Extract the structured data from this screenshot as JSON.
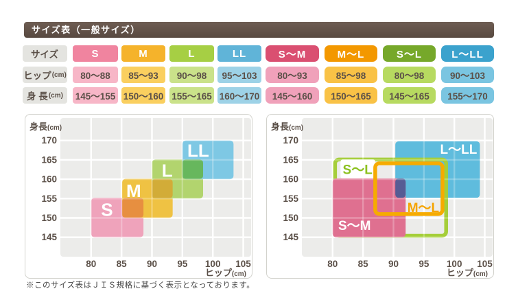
{
  "title": "サイズ表（一般サイズ）",
  "note": "※このサイズ表はＪＩＳ規格に基づく表示となっております。",
  "standard_table": {
    "row_header_bg": "#E4E4E0",
    "row_headers": [
      {
        "label": "サイズ",
        "unit": ""
      },
      {
        "label": "ヒップ",
        "unit": "(cm)"
      },
      {
        "label": "身 長",
        "unit": "(cm)"
      }
    ],
    "columns": [
      {
        "size": "S",
        "hip": "80～88",
        "height": "145～155",
        "header_color": "#F0849F",
        "cell_color": "#F7B6C7"
      },
      {
        "size": "M",
        "hip": "85～93",
        "height": "150～160",
        "header_color": "#F5B32B",
        "cell_color": "#FACF5F"
      },
      {
        "size": "L",
        "hip": "90～98",
        "height": "155～165",
        "header_color": "#A6CF44",
        "cell_color": "#CAE28A"
      },
      {
        "size": "LL",
        "hip": "95～103",
        "height": "160～170",
        "header_color": "#60B4D8",
        "cell_color": "#9DD2E7"
      }
    ]
  },
  "combined_table": {
    "columns": [
      {
        "size": "S～M",
        "hip": "80～93",
        "height": "145～160",
        "header_color": "#DA4F71",
        "cell_color": "#F0A1BA"
      },
      {
        "size": "M～L",
        "hip": "85～98",
        "height": "150～165",
        "header_color": "#F39800",
        "cell_color": "#F9C246"
      },
      {
        "size": "S～L",
        "hip": "80～98",
        "height": "145～165",
        "header_color": "#76A82A",
        "cell_color": "#B7DA60"
      },
      {
        "size": "L～LL",
        "hip": "90～103",
        "height": "155～170",
        "header_color": "#3BA2CD",
        "cell_color": "#7AC5E1"
      }
    ]
  },
  "chart_data": [
    {
      "type": "area",
      "name": "standard-sizes",
      "xlabel": "ヒップ",
      "xlabel_unit": "(cm)",
      "ylabel": "身長",
      "ylabel_unit": "(cm)",
      "xticks": [
        80,
        85,
        90,
        95,
        100,
        105
      ],
      "yticks": [
        145,
        150,
        155,
        160,
        165,
        170
      ],
      "xlim": [
        75,
        106.3
      ],
      "ylim": [
        140,
        175.8
      ],
      "grid": true,
      "plot_bg": "#ECECEA",
      "gridline_color": "#FFFFFF",
      "tick_color": "#5B5048",
      "label_font": 26,
      "layers": [
        {
          "kind": "fill",
          "name": "S",
          "hip": [
            80,
            88
          ],
          "height": [
            145,
            155
          ],
          "color": "#EFA3BB",
          "draw": [
            80,
            88.6,
            145,
            155.2
          ]
        },
        {
          "kind": "fill",
          "name": "M",
          "hip": [
            85,
            93
          ],
          "height": [
            150,
            160
          ],
          "color": "#EFC243",
          "draw": [
            85.1,
            93.4,
            150,
            160.1
          ]
        },
        {
          "kind": "fill",
          "name": "L",
          "hip": [
            90,
            98
          ],
          "height": [
            155,
            165
          ],
          "color": "#B2D46E",
          "draw": [
            90,
            98.4,
            155,
            165.1
          ]
        },
        {
          "kind": "fill",
          "name": "LL",
          "hip": [
            95,
            103
          ],
          "height": [
            160,
            170
          ],
          "color": "#7EC8E4",
          "draw": [
            95,
            103.4,
            160,
            170
          ]
        },
        {
          "kind": "fill",
          "name": "",
          "overlap_of": "S+M",
          "color": "#E78F40",
          "draw": [
            85.1,
            88.6,
            150,
            155.2
          ]
        },
        {
          "kind": "fill",
          "name": "",
          "overlap_of": "M+L",
          "color": "#D2AC38",
          "draw": [
            90,
            93.4,
            155,
            160.1
          ]
        },
        {
          "kind": "fill",
          "name": "",
          "overlap_of": "L+LL",
          "color": "#67B75D",
          "draw": [
            95,
            98.4,
            160,
            165.1
          ]
        },
        {
          "kind": "gridshine"
        }
      ],
      "labels": [
        {
          "text": "S",
          "xy": [
            82.6,
            152.2
          ],
          "color": "#FFFFFF"
        },
        {
          "text": "M",
          "xy": [
            87,
            157.1
          ],
          "color": "#FFFFFF"
        },
        {
          "text": "L",
          "xy": [
            92.5,
            162.3
          ],
          "color": "#FFFFFF"
        },
        {
          "text": "LL",
          "xy": [
            97.6,
            167.4
          ],
          "color": "#FFFFFF"
        }
      ]
    },
    {
      "type": "area",
      "name": "combined-sizes",
      "xlabel": "ヒップ",
      "xlabel_unit": "(cm)",
      "ylabel": "身長",
      "ylabel_unit": "(cm)",
      "xticks": [
        80,
        85,
        90,
        95,
        100,
        105
      ],
      "yticks": [
        145,
        150,
        155,
        160,
        165,
        170
      ],
      "xlim": [
        75,
        106.3
      ],
      "ylim": [
        140,
        175.8
      ],
      "grid": true,
      "plot_bg": "#ECECEA",
      "gridline_color": "#FFFFFF",
      "tick_color": "#5B5048",
      "label_font": 19,
      "layers": [
        {
          "kind": "fill",
          "name": "L～LL",
          "hip": [
            90,
            103
          ],
          "height": [
            155,
            170
          ],
          "color": "#5FBCDD",
          "draw": [
            90.3,
            104.2,
            155.2,
            169.8
          ]
        },
        {
          "kind": "outline",
          "name": "S～L",
          "hip": [
            80,
            98
          ],
          "height": [
            145,
            165
          ],
          "color": "#A5CE39",
          "draw": [
            80.4,
            98.65,
            145.4,
            165.1
          ],
          "stroke_width": 5.5
        },
        {
          "kind": "fill",
          "name": "S～M",
          "hip": [
            80,
            93
          ],
          "height": [
            145,
            160
          ],
          "color": "#DF7090",
          "draw": [
            80,
            92,
            145,
            160.2
          ]
        },
        {
          "kind": "fill",
          "name": "",
          "overlap_of": "S～M+L～LL",
          "color": "#565C94",
          "draw": [
            90.3,
            92,
            155.2,
            160.2
          ]
        },
        {
          "kind": "gridshine"
        },
        {
          "kind": "chip",
          "color": "#FFFFFF",
          "draw": [
            81.3,
            87,
            160.2,
            165.1
          ]
        },
        {
          "kind": "outline",
          "name": "M～L",
          "hip": [
            85,
            98
          ],
          "height": [
            150,
            165
          ],
          "color": "#F6AB00",
          "draw": [
            87,
            98.05,
            151,
            164.1
          ],
          "stroke_width": 5.5
        }
      ],
      "labels": [
        {
          "text": "S～M",
          "xy": [
            83.6,
            148.1
          ],
          "color": "#FFFFFF"
        },
        {
          "text": "S～L",
          "xy": [
            84.1,
            162.6
          ],
          "color": "#8CC11F"
        },
        {
          "text": "M～L",
          "xy": [
            94.9,
            152.7
          ],
          "color": "#F5A400"
        },
        {
          "text": "L～LL",
          "xy": [
            100.7,
            167.8
          ],
          "color": "#FFFFFF"
        }
      ]
    }
  ]
}
